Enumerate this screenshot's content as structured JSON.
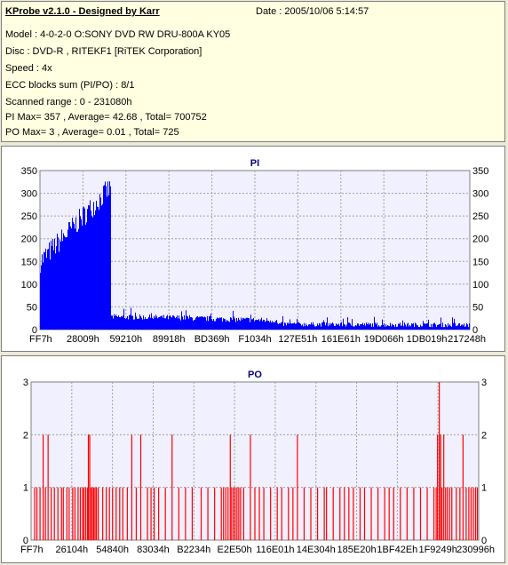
{
  "header": {
    "title": "KProbe v2.1.0 - Designed by Karr",
    "date": "Date : 2005/10/06 5:14:57",
    "lines": [
      "Model : 4-0-2-0 O:SONY    DVD RW DRU-800A  KY05",
      "Disc : DVD-R , RITEKF1 [RiTEK Corporation]",
      "Speed : 4x",
      "ECC blocks sum (PI/PO) : 8/1",
      "Scanned range : 0 - 231080h",
      "PI Max= 357 , Average= 42.68 , Total= 700752",
      "PO Max= 3 , Average= 0.01 , Total= 725"
    ]
  },
  "colors": {
    "pi": "#0000ff",
    "po": "#ff0000",
    "plot_bg": "#f0f0ff",
    "title": "#00007f"
  },
  "chart_data": [
    {
      "type": "bar",
      "title": "PI",
      "ylim": [
        0,
        350
      ],
      "yticks": [
        0,
        50,
        100,
        150,
        200,
        250,
        300,
        350
      ],
      "xticks": [
        "FF7h",
        "28009h",
        "59210h",
        "89918h",
        "BD369h",
        "F1034h",
        "127E51h",
        "161E61h",
        "19D066h",
        "1DB019h",
        "217248h"
      ],
      "grid": true,
      "series": [
        {
          "segments": [
            {
              "from": 0.0,
              "to": 0.16,
              "start": 150,
              "end": 310,
              "noise": 25
            },
            {
              "from": 0.16,
              "to": 0.161,
              "start": 357,
              "end": 357,
              "noise": 0
            },
            {
              "from": 0.161,
              "to": 0.165,
              "start": 310,
              "end": 330,
              "noise": 20
            },
            {
              "from": 0.165,
              "to": 0.35,
              "start": 28,
              "end": 26,
              "noise": 6
            },
            {
              "from": 0.35,
              "to": 0.55,
              "start": 25,
              "end": 20,
              "noise": 6
            },
            {
              "from": 0.55,
              "to": 1.0,
              "start": 12,
              "end": 10,
              "noise": 5
            }
          ]
        }
      ]
    },
    {
      "type": "bar",
      "title": "PO",
      "ylim": [
        0,
        3
      ],
      "yticks": [
        0,
        1,
        2,
        3
      ],
      "xticks": [
        "FF7h",
        "26104h",
        "54840h",
        "83034h",
        "B2234h",
        "E2E50h",
        "116E01h",
        "14E304h",
        "185E20h",
        "1BF42Eh",
        "1F9249h",
        "230996h"
      ],
      "grid": true,
      "series": [
        {
          "points": [
            [
              0.008,
              1
            ],
            [
              0.013,
              1
            ],
            [
              0.02,
              1
            ],
            [
              0.027,
              2
            ],
            [
              0.032,
              1
            ],
            [
              0.038,
              2
            ],
            [
              0.045,
              1
            ],
            [
              0.052,
              1
            ],
            [
              0.06,
              1
            ],
            [
              0.068,
              1
            ],
            [
              0.072,
              1
            ],
            [
              0.08,
              1
            ],
            [
              0.085,
              1
            ],
            [
              0.093,
              1
            ],
            [
              0.098,
              1
            ],
            [
              0.105,
              1
            ],
            [
              0.11,
              1
            ],
            [
              0.115,
              1
            ],
            [
              0.118,
              1
            ],
            [
              0.122,
              1
            ],
            [
              0.126,
              1
            ],
            [
              0.128,
              2
            ],
            [
              0.131,
              2
            ],
            [
              0.134,
              1
            ],
            [
              0.137,
              1
            ],
            [
              0.14,
              1
            ],
            [
              0.143,
              1
            ],
            [
              0.146,
              1
            ],
            [
              0.15,
              1
            ],
            [
              0.16,
              1
            ],
            [
              0.168,
              1
            ],
            [
              0.175,
              1
            ],
            [
              0.182,
              1
            ],
            [
              0.19,
              1
            ],
            [
              0.198,
              1
            ],
            [
              0.205,
              1
            ],
            [
              0.215,
              1
            ],
            [
              0.225,
              2
            ],
            [
              0.235,
              1
            ],
            [
              0.245,
              2
            ],
            [
              0.26,
              1
            ],
            [
              0.268,
              1
            ],
            [
              0.275,
              1
            ],
            [
              0.285,
              1
            ],
            [
              0.3,
              1
            ],
            [
              0.315,
              2
            ],
            [
              0.33,
              1
            ],
            [
              0.345,
              1
            ],
            [
              0.36,
              1
            ],
            [
              0.38,
              1
            ],
            [
              0.395,
              1
            ],
            [
              0.41,
              1
            ],
            [
              0.425,
              1
            ],
            [
              0.43,
              1
            ],
            [
              0.435,
              1
            ],
            [
              0.44,
              1
            ],
            [
              0.445,
              2
            ],
            [
              0.448,
              1
            ],
            [
              0.452,
              1
            ],
            [
              0.456,
              1
            ],
            [
              0.46,
              1
            ],
            [
              0.464,
              1
            ],
            [
              0.468,
              1
            ],
            [
              0.475,
              1
            ],
            [
              0.49,
              2
            ],
            [
              0.5,
              1
            ],
            [
              0.51,
              1
            ],
            [
              0.52,
              1
            ],
            [
              0.535,
              1
            ],
            [
              0.55,
              1
            ],
            [
              0.56,
              1
            ],
            [
              0.575,
              1
            ],
            [
              0.585,
              1
            ],
            [
              0.595,
              2
            ],
            [
              0.61,
              1
            ],
            [
              0.625,
              1
            ],
            [
              0.64,
              1
            ],
            [
              0.655,
              1
            ],
            [
              0.66,
              1
            ],
            [
              0.675,
              1
            ],
            [
              0.69,
              1
            ],
            [
              0.7,
              1
            ],
            [
              0.71,
              1
            ],
            [
              0.72,
              1
            ],
            [
              0.735,
              1
            ],
            [
              0.745,
              1
            ],
            [
              0.76,
              1
            ],
            [
              0.775,
              1
            ],
            [
              0.79,
              1
            ],
            [
              0.8,
              1
            ],
            [
              0.81,
              1
            ],
            [
              0.825,
              1
            ],
            [
              0.84,
              1
            ],
            [
              0.855,
              1
            ],
            [
              0.87,
              1
            ],
            [
              0.885,
              1
            ],
            [
              0.9,
              1
            ],
            [
              0.905,
              1
            ],
            [
              0.908,
              2
            ],
            [
              0.912,
              3
            ],
            [
              0.915,
              2
            ],
            [
              0.918,
              1
            ],
            [
              0.922,
              2
            ],
            [
              0.926,
              1
            ],
            [
              0.93,
              1
            ],
            [
              0.935,
              1
            ],
            [
              0.94,
              1
            ],
            [
              0.95,
              1
            ],
            [
              0.958,
              1
            ],
            [
              0.965,
              2
            ],
            [
              0.972,
              1
            ],
            [
              0.978,
              1
            ],
            [
              0.983,
              1
            ],
            [
              0.988,
              1
            ],
            [
              0.993,
              1
            ],
            [
              0.997,
              1
            ]
          ]
        }
      ]
    }
  ]
}
